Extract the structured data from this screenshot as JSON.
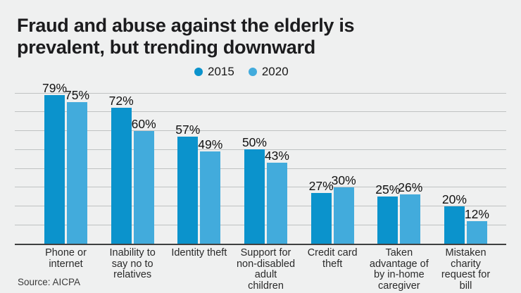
{
  "title": "Fraud and abuse against the elderly is\nprevalent, but trending downward",
  "source": "Source: AICPA",
  "colors": {
    "background": "#eff0f0",
    "gridline": "#bfc2c2",
    "axis": "#3f4040",
    "series_2015": "#0b93cc",
    "series_2020": "#42abdc"
  },
  "chart_data": {
    "type": "bar",
    "title": "Fraud and abuse against the elderly is prevalent, but trending downward",
    "categories": [
      [
        "Phone or",
        "internet"
      ],
      [
        "Inability to",
        "say no to",
        "relatives"
      ],
      [
        "Identity theft"
      ],
      [
        "Support for",
        "non-disabled",
        "adult",
        "children"
      ],
      [
        "Credit card",
        "theft"
      ],
      [
        "Taken",
        "advantage of",
        "by in-home",
        "caregiver"
      ],
      [
        "Mistaken",
        "charity",
        "request for",
        "bill"
      ]
    ],
    "series": [
      {
        "name": "2015",
        "color": "#0b93cc",
        "values": [
          79,
          72,
          57,
          50,
          27,
          25,
          20
        ]
      },
      {
        "name": "2020",
        "color": "#42abdc",
        "values": [
          75,
          60,
          49,
          43,
          30,
          26,
          12
        ]
      }
    ],
    "value_suffix": "%",
    "xlabel": "",
    "ylabel": "",
    "ylim": [
      0,
      80
    ],
    "grid_step": 10,
    "grid": true,
    "legend_position": "top-center",
    "source": "Source: AICPA"
  }
}
